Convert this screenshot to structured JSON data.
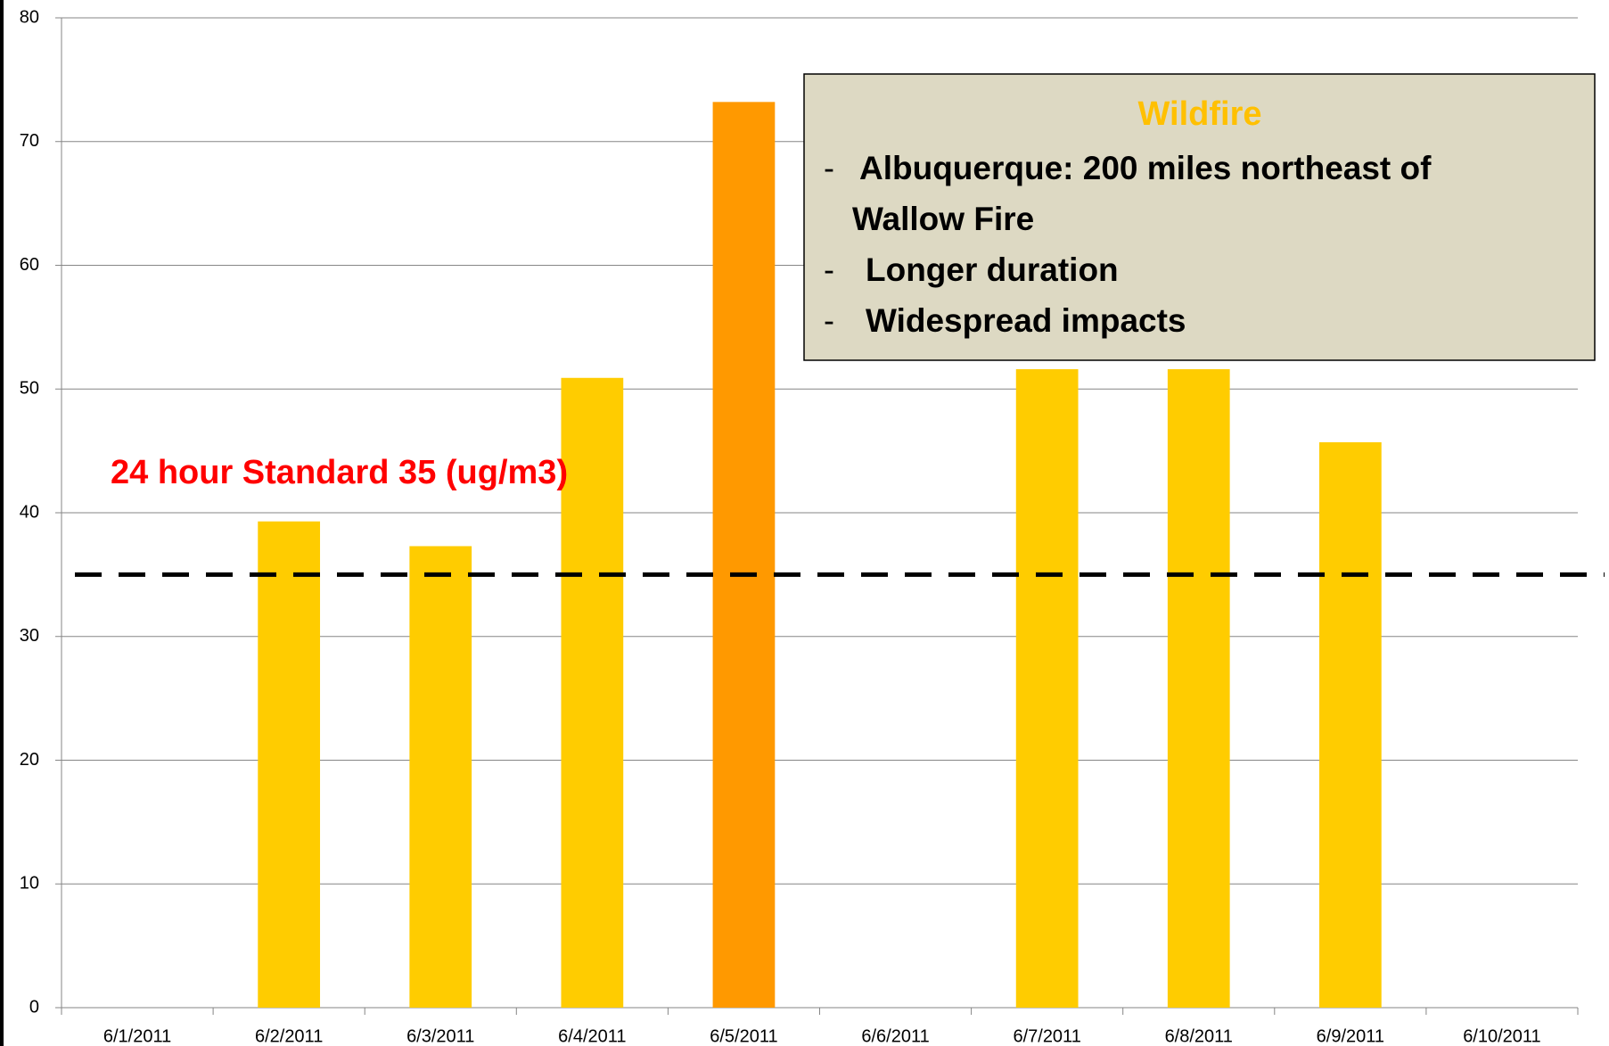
{
  "chart_data": {
    "type": "bar",
    "categories": [
      "6/1/2011",
      "6/2/2011",
      "6/3/2011",
      "6/4/2011",
      "6/5/2011",
      "6/6/2011",
      "6/7/2011",
      "6/8/2011",
      "6/9/2011",
      "6/10/2011"
    ],
    "values": [
      null,
      39.3,
      37.3,
      50.9,
      73.2,
      null,
      51.6,
      51.6,
      45.7,
      null
    ],
    "colors": [
      "#ffcc00",
      "#ffcc00",
      "#ffcc00",
      "#ffcc00",
      "#ff9900",
      "#ffcc00",
      "#ffcc00",
      "#ffcc00",
      "#ffcc00",
      "#ffcc00"
    ],
    "ylim": [
      0,
      80
    ],
    "yticks": [
      0,
      10,
      20,
      30,
      40,
      50,
      60,
      70,
      80
    ],
    "grid": true,
    "reference_line": {
      "value": 35,
      "label": "24 hour Standard 35 (ug/m3)",
      "color": "#ff0000"
    },
    "annotation": {
      "title": "Wildfire",
      "items": [
        {
          "dash": "-",
          "lines": [
            "Albuquerque:  200 miles northeast of",
            "Wallow Fire"
          ]
        },
        {
          "dash": "-",
          "lines": [
            "Longer duration"
          ]
        },
        {
          "dash": "-",
          "lines": [
            "Widespread impacts"
          ]
        }
      ]
    }
  }
}
